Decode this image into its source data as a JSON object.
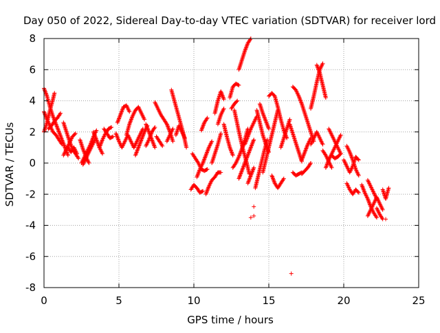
{
  "chart_data": {
    "type": "scatter",
    "title": "Day 050 of 2022, Sidereal Day-to-day VTEC variation (SDTVAR) for receiver lord",
    "xlabel": "GPS time / hours",
    "ylabel": "SDTVAR / TECUs",
    "xlim": [
      0,
      25
    ],
    "ylim": [
      -8,
      8
    ],
    "xticks": [
      0,
      5,
      10,
      15,
      20,
      25
    ],
    "yticks": [
      -8,
      -6,
      -4,
      -2,
      0,
      2,
      4,
      6,
      8
    ],
    "grid": true,
    "marker": "+",
    "color": "#ff0000",
    "tracks": [
      [
        [
          0.0,
          4.8
        ],
        [
          0.2,
          4.3
        ],
        [
          0.4,
          3.6
        ],
        [
          0.6,
          3.0
        ],
        [
          0.8,
          2.5
        ],
        [
          1.0,
          2.0
        ],
        [
          1.2,
          1.5
        ],
        [
          1.4,
          1.0
        ],
        [
          1.6,
          0.5
        ]
      ],
      [
        [
          0.0,
          2.0
        ],
        [
          0.2,
          2.6
        ],
        [
          0.4,
          3.4
        ],
        [
          0.6,
          4.1
        ],
        [
          0.7,
          4.5
        ]
      ],
      [
        [
          0.0,
          3.3
        ],
        [
          0.2,
          2.8
        ],
        [
          0.4,
          2.4
        ],
        [
          0.6,
          2.0
        ],
        [
          0.8,
          1.8
        ],
        [
          1.0,
          1.5
        ],
        [
          1.2,
          1.2
        ]
      ],
      [
        [
          0.3,
          2.2
        ],
        [
          0.5,
          2.4
        ],
        [
          0.7,
          2.7
        ],
        [
          0.9,
          2.9
        ],
        [
          1.1,
          3.2
        ]
      ],
      [
        [
          1.3,
          2.6
        ],
        [
          1.5,
          2.0
        ],
        [
          1.7,
          1.4
        ],
        [
          1.9,
          0.9
        ],
        [
          2.1,
          0.6
        ],
        [
          2.3,
          0.3
        ]
      ],
      [
        [
          1.3,
          0.5
        ],
        [
          1.5,
          0.9
        ],
        [
          1.7,
          1.3
        ],
        [
          1.9,
          1.7
        ],
        [
          2.1,
          1.9
        ]
      ],
      [
        [
          1.6,
          1.0
        ],
        [
          1.8,
          0.7
        ],
        [
          2.0,
          1.0
        ],
        [
          2.2,
          0.6
        ]
      ],
      [
        [
          2.4,
          1.5
        ],
        [
          2.6,
          0.9
        ],
        [
          2.8,
          0.4
        ],
        [
          3.0,
          0.0
        ]
      ],
      [
        [
          2.5,
          0.0
        ],
        [
          2.7,
          0.4
        ],
        [
          2.9,
          0.8
        ],
        [
          3.1,
          1.2
        ],
        [
          3.3,
          1.7
        ],
        [
          3.5,
          2.1
        ]
      ],
      [
        [
          2.6,
          -0.1
        ],
        [
          2.8,
          0.3
        ],
        [
          3.0,
          0.7
        ],
        [
          3.2,
          1.1
        ],
        [
          3.4,
          1.5
        ]
      ],
      [
        [
          3.3,
          2.0
        ],
        [
          3.5,
          1.5
        ],
        [
          3.7,
          1.0
        ],
        [
          3.9,
          0.6
        ]
      ],
      [
        [
          3.7,
          1.0
        ],
        [
          3.9,
          1.5
        ],
        [
          4.1,
          1.9
        ],
        [
          4.3,
          2.2
        ],
        [
          4.5,
          2.3
        ]
      ],
      [
        [
          4.0,
          2.2
        ],
        [
          4.2,
          1.9
        ],
        [
          4.4,
          1.6
        ],
        [
          4.6,
          1.7
        ]
      ],
      [
        [
          4.8,
          1.9
        ],
        [
          5.0,
          1.4
        ],
        [
          5.2,
          1.0
        ],
        [
          5.4,
          1.4
        ],
        [
          5.6,
          1.8
        ],
        [
          5.8,
          1.4
        ],
        [
          6.0,
          1.0
        ]
      ],
      [
        [
          4.9,
          2.6
        ],
        [
          5.1,
          3.1
        ],
        [
          5.3,
          3.6
        ],
        [
          5.5,
          3.7
        ],
        [
          5.7,
          3.3
        ]
      ],
      [
        [
          5.5,
          1.8
        ],
        [
          5.7,
          2.5
        ],
        [
          5.9,
          3.0
        ],
        [
          6.1,
          3.4
        ],
        [
          6.3,
          3.6
        ],
        [
          6.5,
          3.2
        ],
        [
          6.7,
          2.8
        ]
      ],
      [
        [
          6.0,
          1.0
        ],
        [
          6.2,
          1.4
        ],
        [
          6.4,
          1.8
        ],
        [
          6.6,
          2.2
        ]
      ],
      [
        [
          6.1,
          0.5
        ],
        [
          6.3,
          1.0
        ],
        [
          6.5,
          1.5
        ],
        [
          6.7,
          2.0
        ],
        [
          6.9,
          2.4
        ]
      ],
      [
        [
          6.8,
          2.5
        ],
        [
          7.0,
          2.0
        ],
        [
          7.2,
          1.5
        ],
        [
          7.4,
          1.0
        ]
      ],
      [
        [
          6.8,
          1.1
        ],
        [
          7.0,
          1.5
        ],
        [
          7.2,
          2.0
        ],
        [
          7.4,
          2.3
        ]
      ],
      [
        [
          7.4,
          3.9
        ],
        [
          7.6,
          3.5
        ],
        [
          7.8,
          3.1
        ],
        [
          8.0,
          2.8
        ],
        [
          8.2,
          2.5
        ],
        [
          8.4,
          2.0
        ],
        [
          8.6,
          1.4
        ]
      ],
      [
        [
          7.5,
          1.7
        ],
        [
          7.7,
          1.4
        ],
        [
          7.9,
          1.1
        ]
      ],
      [
        [
          8.2,
          1.4
        ],
        [
          8.4,
          1.8
        ],
        [
          8.6,
          2.2
        ]
      ],
      [
        [
          8.5,
          4.7
        ],
        [
          8.7,
          4.0
        ],
        [
          8.9,
          3.3
        ],
        [
          9.1,
          2.6
        ],
        [
          9.3,
          1.9
        ],
        [
          9.5,
          1.0
        ]
      ],
      [
        [
          8.8,
          1.8
        ],
        [
          9.0,
          2.4
        ],
        [
          9.2,
          2.0
        ],
        [
          9.4,
          1.6
        ]
      ],
      [
        [
          9.9,
          0.6
        ],
        [
          10.1,
          0.3
        ],
        [
          10.3,
          0.0
        ],
        [
          10.5,
          -0.4
        ],
        [
          10.7,
          -0.5
        ],
        [
          10.9,
          -0.4
        ]
      ],
      [
        [
          9.8,
          -1.7
        ],
        [
          10.0,
          -1.4
        ],
        [
          10.2,
          -1.6
        ],
        [
          10.4,
          -1.9
        ],
        [
          10.6,
          -1.8
        ]
      ],
      [
        [
          10.2,
          -0.9
        ],
        [
          10.4,
          -0.4
        ],
        [
          10.6,
          0.0
        ],
        [
          10.8,
          0.5
        ],
        [
          11.0,
          1.0
        ],
        [
          11.2,
          1.4
        ]
      ],
      [
        [
          10.5,
          2.1
        ],
        [
          10.7,
          2.6
        ],
        [
          10.9,
          2.9
        ]
      ],
      [
        [
          10.8,
          -2.0
        ],
        [
          11.0,
          -1.5
        ],
        [
          11.2,
          -1.1
        ],
        [
          11.4,
          -0.9
        ],
        [
          11.6,
          -0.6
        ],
        [
          11.8,
          -0.6
        ]
      ],
      [
        [
          11.2,
          0.0
        ],
        [
          11.4,
          0.6
        ],
        [
          11.6,
          1.2
        ],
        [
          11.8,
          1.9
        ]
      ],
      [
        [
          11.4,
          3.2
        ],
        [
          11.6,
          4.0
        ],
        [
          11.8,
          4.6
        ],
        [
          12.0,
          4.1
        ]
      ],
      [
        [
          11.6,
          2.5
        ],
        [
          11.8,
          3.1
        ],
        [
          12.0,
          3.5
        ]
      ],
      [
        [
          12.0,
          2.5
        ],
        [
          12.2,
          1.7
        ],
        [
          12.4,
          1.0
        ],
        [
          12.6,
          0.5
        ]
      ],
      [
        [
          12.4,
          4.2
        ],
        [
          12.6,
          4.9
        ],
        [
          12.8,
          5.1
        ],
        [
          13.0,
          5.0
        ]
      ],
      [
        [
          12.5,
          3.5
        ],
        [
          12.7,
          3.8
        ],
        [
          12.9,
          4.0
        ]
      ],
      [
        [
          12.6,
          -0.3
        ],
        [
          12.8,
          0.0
        ],
        [
          13.0,
          0.4
        ],
        [
          13.2,
          0.9
        ],
        [
          13.4,
          1.5
        ],
        [
          13.6,
          2.2
        ]
      ],
      [
        [
          12.7,
          3.4
        ],
        [
          12.9,
          2.5
        ],
        [
          13.1,
          1.6
        ],
        [
          13.3,
          0.8
        ],
        [
          13.5,
          0.1
        ],
        [
          13.7,
          -0.7
        ]
      ],
      [
        [
          13.0,
          -1.0
        ],
        [
          13.2,
          -0.5
        ],
        [
          13.4,
          0.0
        ],
        [
          13.6,
          0.5
        ],
        [
          13.8,
          1.0
        ],
        [
          14.0,
          1.5
        ]
      ],
      [
        [
          13.0,
          6.0
        ],
        [
          13.2,
          6.6
        ],
        [
          13.4,
          7.2
        ],
        [
          13.6,
          7.7
        ],
        [
          13.8,
          8.0
        ]
      ],
      [
        [
          13.4,
          1.2
        ],
        [
          13.6,
          1.7
        ],
        [
          13.8,
          2.2
        ],
        [
          14.0,
          2.6
        ],
        [
          14.2,
          3.0
        ]
      ],
      [
        [
          13.6,
          -1.3
        ],
        [
          13.8,
          -0.8
        ],
        [
          14.0,
          -0.3
        ]
      ],
      [
        [
          14.2,
          3.4
        ],
        [
          14.4,
          2.6
        ],
        [
          14.6,
          1.8
        ],
        [
          14.8,
          1.2
        ],
        [
          15.0,
          0.7
        ]
      ],
      [
        [
          14.1,
          -1.6
        ],
        [
          14.3,
          -0.8
        ],
        [
          14.5,
          0.0
        ],
        [
          14.7,
          0.8
        ],
        [
          14.9,
          1.5
        ]
      ],
      [
        [
          14.4,
          3.8
        ],
        [
          14.6,
          3.2
        ],
        [
          14.8,
          2.7
        ],
        [
          15.0,
          2.2
        ]
      ],
      [
        [
          14.6,
          -0.6
        ],
        [
          14.8,
          0.2
        ],
        [
          15.0,
          1.0
        ],
        [
          15.2,
          1.8
        ],
        [
          15.4,
          2.6
        ],
        [
          15.6,
          3.4
        ]
      ],
      [
        [
          15.0,
          4.3
        ],
        [
          15.2,
          4.5
        ],
        [
          15.4,
          4.3
        ],
        [
          15.6,
          3.6
        ],
        [
          15.8,
          2.8
        ],
        [
          16.0,
          2.1
        ],
        [
          16.2,
          1.6
        ]
      ],
      [
        [
          15.2,
          -0.8
        ],
        [
          15.4,
          -1.3
        ],
        [
          15.6,
          -1.6
        ],
        [
          15.8,
          -1.3
        ],
        [
          16.0,
          -1.0
        ]
      ],
      [
        [
          15.8,
          1.0
        ],
        [
          16.0,
          1.6
        ],
        [
          16.2,
          2.2
        ],
        [
          16.4,
          2.8
        ]
      ],
      [
        [
          16.4,
          2.5
        ],
        [
          16.6,
          1.9
        ],
        [
          16.8,
          1.3
        ],
        [
          17.0,
          0.7
        ],
        [
          17.2,
          0.1
        ]
      ],
      [
        [
          16.6,
          -0.6
        ],
        [
          16.8,
          -0.8
        ],
        [
          17.0,
          -0.7
        ],
        [
          17.2,
          -0.6
        ]
      ],
      [
        [
          16.6,
          4.9
        ],
        [
          16.8,
          4.7
        ],
        [
          17.0,
          4.3
        ],
        [
          17.2,
          3.8
        ],
        [
          17.4,
          3.2
        ],
        [
          17.6,
          2.6
        ],
        [
          17.8,
          2.0
        ],
        [
          18.0,
          1.4
        ]
      ],
      [
        [
          17.2,
          0.2
        ],
        [
          17.4,
          0.7
        ],
        [
          17.6,
          1.2
        ],
        [
          17.8,
          1.6
        ]
      ],
      [
        [
          17.2,
          -0.7
        ],
        [
          17.4,
          -0.5
        ],
        [
          17.6,
          -0.3
        ],
        [
          17.8,
          0.0
        ]
      ],
      [
        [
          17.8,
          3.5
        ],
        [
          18.0,
          4.3
        ],
        [
          18.2,
          5.2
        ],
        [
          18.4,
          6.0
        ],
        [
          18.6,
          6.4
        ]
      ],
      [
        [
          18.2,
          6.3
        ],
        [
          18.4,
          5.8
        ],
        [
          18.6,
          5.0
        ],
        [
          18.8,
          4.2
        ]
      ],
      [
        [
          17.8,
          1.2
        ],
        [
          18.0,
          1.6
        ],
        [
          18.2,
          2.0
        ],
        [
          18.4,
          1.6
        ],
        [
          18.6,
          1.2
        ]
      ],
      [
        [
          18.6,
          0.8
        ],
        [
          18.8,
          0.5
        ],
        [
          19.0,
          0.1
        ],
        [
          19.2,
          -0.3
        ]
      ],
      [
        [
          18.8,
          -0.3
        ],
        [
          19.0,
          0.2
        ],
        [
          19.2,
          0.6
        ],
        [
          19.4,
          1.0
        ],
        [
          19.6,
          1.4
        ],
        [
          19.8,
          1.8
        ]
      ],
      [
        [
          19.0,
          2.2
        ],
        [
          19.2,
          1.8
        ],
        [
          19.4,
          1.4
        ],
        [
          19.6,
          1.0
        ],
        [
          19.8,
          0.6
        ]
      ],
      [
        [
          19.2,
          0.5
        ],
        [
          19.4,
          0.3
        ],
        [
          19.6,
          0.4
        ],
        [
          19.8,
          0.6
        ]
      ],
      [
        [
          20.0,
          0.2
        ],
        [
          20.2,
          -0.2
        ],
        [
          20.4,
          -0.6
        ],
        [
          20.6,
          -0.2
        ],
        [
          20.8,
          0.4
        ],
        [
          21.0,
          0.2
        ]
      ],
      [
        [
          20.2,
          1.1
        ],
        [
          20.4,
          0.7
        ],
        [
          20.6,
          0.2
        ],
        [
          20.8,
          -0.4
        ],
        [
          21.0,
          -0.8
        ]
      ],
      [
        [
          20.2,
          -1.3
        ],
        [
          20.4,
          -1.7
        ],
        [
          20.6,
          -2.0
        ],
        [
          20.8,
          -1.7
        ],
        [
          21.0,
          -1.9
        ]
      ],
      [
        [
          21.2,
          -1.4
        ],
        [
          21.4,
          -1.9
        ],
        [
          21.6,
          -2.3
        ],
        [
          21.8,
          -2.8
        ],
        [
          22.0,
          -3.2
        ],
        [
          22.2,
          -3.5
        ]
      ],
      [
        [
          21.6,
          -1.1
        ],
        [
          21.8,
          -1.5
        ],
        [
          22.0,
          -1.9
        ],
        [
          22.2,
          -2.3
        ]
      ],
      [
        [
          21.6,
          -3.4
        ],
        [
          21.8,
          -3.0
        ],
        [
          22.0,
          -2.6
        ],
        [
          22.2,
          -2.2
        ],
        [
          22.4,
          -2.6
        ],
        [
          22.6,
          -3.0
        ]
      ],
      [
        [
          22.2,
          -2.9
        ],
        [
          22.4,
          -3.3
        ],
        [
          22.6,
          -3.6
        ]
      ],
      [
        [
          22.6,
          -1.7
        ],
        [
          22.8,
          -2.3
        ],
        [
          23.0,
          -1.6
        ]
      ],
      [
        [
          22.8,
          -3.6
        ]
      ]
    ],
    "outliers": [
      [
        13.8,
        -3.5
      ],
      [
        14.0,
        -3.4
      ],
      [
        14.0,
        -2.8
      ],
      [
        16.5,
        -7.1
      ]
    ]
  }
}
